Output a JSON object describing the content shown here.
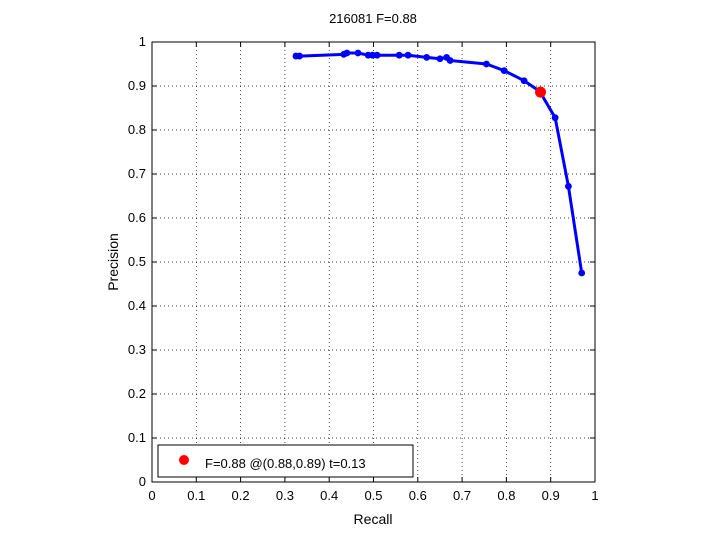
{
  "chart_data": {
    "type": "line",
    "title": "216081 F=0.88",
    "xlabel": "Recall",
    "ylabel": "Precision",
    "xlim": [
      0,
      1
    ],
    "ylim": [
      0,
      1
    ],
    "x_ticks": [
      "0",
      "0.1",
      "0.2",
      "0.3",
      "0.4",
      "0.5",
      "0.6",
      "0.7",
      "0.8",
      "0.9",
      "1"
    ],
    "y_ticks": [
      "0",
      "0.1",
      "0.2",
      "0.3",
      "0.4",
      "0.5",
      "0.6",
      "0.7",
      "0.8",
      "0.9",
      "1"
    ],
    "grid": true,
    "legend_position": "bottom-left",
    "series": [
      {
        "color": "#0000ff",
        "points": [
          [
            0.325,
            0.968
          ],
          [
            0.333,
            0.968
          ],
          [
            0.433,
            0.972
          ],
          [
            0.44,
            0.975
          ],
          [
            0.465,
            0.975
          ],
          [
            0.488,
            0.97
          ],
          [
            0.498,
            0.97
          ],
          [
            0.508,
            0.97
          ],
          [
            0.558,
            0.97
          ],
          [
            0.578,
            0.97
          ],
          [
            0.62,
            0.965
          ],
          [
            0.65,
            0.962
          ],
          [
            0.665,
            0.965
          ],
          [
            0.673,
            0.958
          ],
          [
            0.755,
            0.95
          ],
          [
            0.795,
            0.935
          ],
          [
            0.84,
            0.912
          ],
          [
            0.875,
            0.888
          ],
          [
            0.91,
            0.828
          ],
          [
            0.94,
            0.672
          ],
          [
            0.97,
            0.475
          ]
        ]
      }
    ],
    "highlight": {
      "label": "F=0.88 @(0.88,0.89) t=0.13",
      "color": "#ff0000",
      "x": 0.877,
      "y": 0.886
    }
  }
}
